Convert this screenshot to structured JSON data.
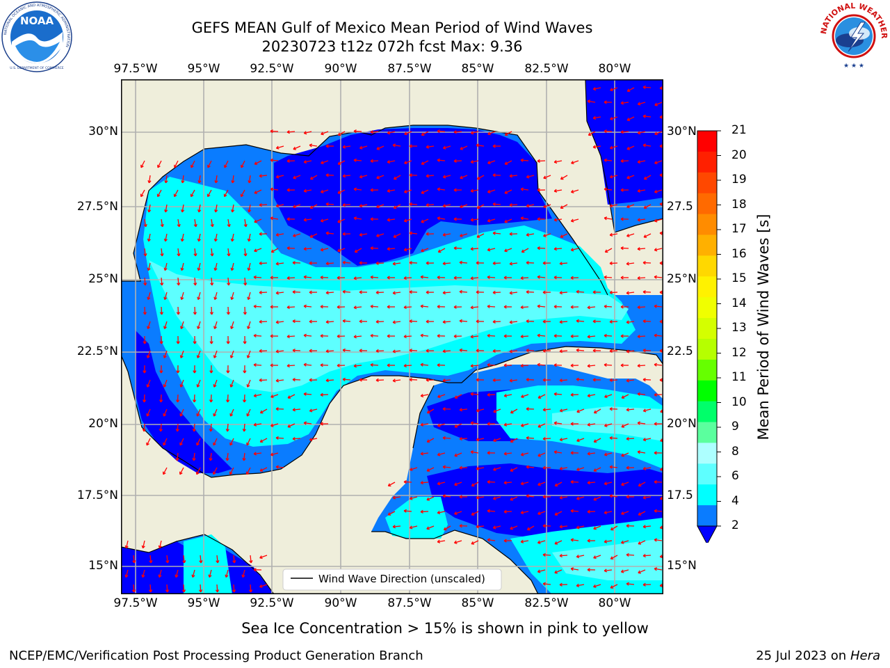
{
  "header": {
    "title_line1": "GEFS MEAN Gulf of Mexico Mean Period of Wind Waves",
    "title_line2": "20230723 t12z 072h fcst   Max: 9.36"
  },
  "logos": {
    "left": {
      "name": "NOAA",
      "ring_text": "NATIONAL OCEANIC AND ATMOSPHERIC ADMINISTRATION",
      "bottom_text": "U.S. DEPARTMENT OF COMMERCE"
    },
    "right": {
      "ring_text": "NATIONAL WEATHER SERVICE"
    }
  },
  "map": {
    "lon_ticks": [
      "97.5°W",
      "95°W",
      "92.5°W",
      "90°W",
      "87.5°W",
      "85°W",
      "82.5°W",
      "80°W"
    ],
    "lat_ticks_left": [
      "30°N",
      "27.5°N",
      "25°N",
      "22.5°N",
      "20°N",
      "17.5°N",
      "15°N"
    ],
    "lat_ticks_right": [
      "30°N",
      "27.5",
      "25°N",
      "22.5",
      "20°N",
      "17.5",
      "15°N"
    ],
    "legend": "Wind Wave Direction (unscaled)",
    "colors": {
      "land": "#efeedb",
      "period_2_4": "#0a7cff",
      "period_below_2": "#0000ff",
      "period_4_6": "#00ffff",
      "period_6_8": "#5effff",
      "arrows": "#ff0000",
      "grid": "#b0b0b0"
    }
  },
  "colorbar": {
    "label": "Mean Period of Wind Waves [s]",
    "ticks": [
      "21",
      "20",
      "19",
      "18",
      "17",
      "16",
      "15",
      "14",
      "13",
      "12",
      "11",
      "10",
      "9",
      "8",
      "6",
      "4",
      "2"
    ],
    "colors": [
      "#ff0000",
      "#ff2000",
      "#ff4800",
      "#ff6a00",
      "#ff8c00",
      "#ffb000",
      "#ffd800",
      "#fff200",
      "#f0ff00",
      "#d4ff00",
      "#b6ff00",
      "#66ff00",
      "#00ff00",
      "#00ff6a",
      "#5bff9e",
      "#adffff",
      "#5effff",
      "#00ffff",
      "#0a7cff"
    ],
    "extend_color": "#0000ff"
  },
  "footer": {
    "ice_note": "Sea Ice Concentration > 15% is shown in pink to yellow",
    "credit": "NCEP/EMC/Verification Post Processing Product Generation Branch",
    "date": "25 Jul 2023 on",
    "machine": "Hera"
  }
}
